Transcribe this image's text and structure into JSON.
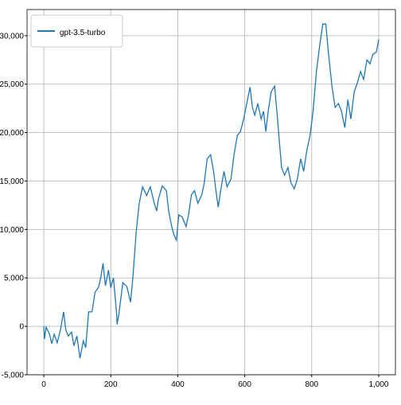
{
  "chart_data": {
    "type": "line",
    "series": [
      {
        "name": "gpt-3.5-turbo",
        "color": "#1f77b4",
        "x": [
          0,
          2,
          7,
          17,
          24,
          31,
          40,
          50,
          59,
          66,
          73,
          83,
          90,
          99,
          108,
          118,
          125,
          134,
          144,
          153,
          163,
          170,
          177,
          184,
          193,
          200,
          208,
          217,
          219,
          224,
          236,
          248,
          259,
          266,
          276,
          285,
          295,
          307,
          318,
          330,
          337,
          342,
          354,
          366,
          373,
          382,
          389,
          396,
          403,
          413,
          425,
          432,
          441,
          450,
          460,
          472,
          479,
          488,
          498,
          507,
          514,
          521,
          528,
          538,
          547,
          559,
          568,
          578,
          587,
          597,
          606,
          616,
          623,
          630,
          639,
          649,
          656,
          663,
          670,
          679,
          689,
          696,
          703,
          710,
          719,
          729,
          738,
          748,
          757,
          767,
          776,
          785,
          795,
          804,
          814,
          823,
          833,
          842,
          851,
          861,
          870,
          880,
          889,
          899,
          908,
          917,
          927,
          936,
          946,
          955,
          965,
          974,
          983,
          993,
          1000
        ],
        "values": [
          0,
          -1300,
          -100,
          -800,
          -1800,
          -800,
          -1700,
          -300,
          1500,
          -400,
          -1000,
          -600,
          -2000,
          -1000,
          -3300,
          -1500,
          -2200,
          1500,
          1500,
          3500,
          4000,
          5000,
          6500,
          4200,
          5800,
          4000,
          5000,
          1500,
          200,
          1200,
          4500,
          4100,
          2500,
          5000,
          9800,
          12700,
          14400,
          13500,
          14400,
          12700,
          11900,
          13100,
          14500,
          14000,
          11900,
          10300,
          9400,
          8900,
          11500,
          11300,
          10300,
          11500,
          13600,
          14000,
          12700,
          13600,
          14800,
          17300,
          17700,
          16000,
          14000,
          12300,
          14000,
          16000,
          14400,
          15200,
          17700,
          19700,
          20100,
          21400,
          23000,
          24700,
          22600,
          21800,
          23000,
          21400,
          22200,
          20100,
          22200,
          24200,
          24800,
          22200,
          19300,
          16400,
          15600,
          16400,
          14800,
          14200,
          15200,
          17300,
          16000,
          18100,
          19700,
          22200,
          26300,
          28800,
          31200,
          31200,
          27900,
          24700,
          22600,
          23000,
          22200,
          20500,
          23400,
          21400,
          24200,
          25100,
          26300,
          25500,
          27500,
          27100,
          28100,
          28300,
          29600
        ]
      }
    ],
    "xlim": [
      -50,
      1050
    ],
    "xticks": [
      0,
      200,
      400,
      600,
      800,
      {
        "value": 1000,
        "label": "1,000"
      }
    ],
    "ylim": [
      -5000,
      32700
    ],
    "yticks": [
      {
        "value": -5000,
        "label": "-5,000"
      },
      0,
      {
        "value": 5000,
        "label": "5,000"
      },
      {
        "value": 10000,
        "label": "10,000"
      },
      {
        "value": 15000,
        "label": "15,000"
      },
      {
        "value": 20000,
        "label": "20,000"
      },
      {
        "value": 25000,
        "label": "25,000"
      },
      {
        "value": 30000,
        "label": "30,000"
      }
    ],
    "grid": true,
    "legend": "upper left"
  }
}
